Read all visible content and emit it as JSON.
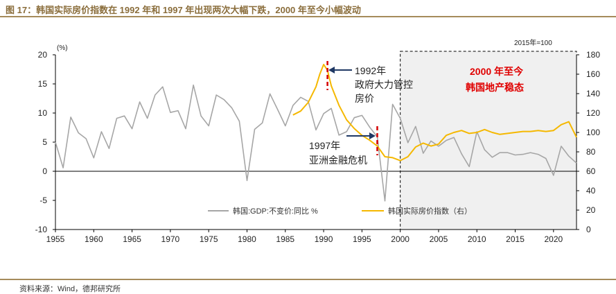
{
  "header": {
    "title": "图 17：韩国实际房价指数在 1992 年和 1997 年出现两次大幅下跌，2000 年至今小幅波动"
  },
  "footer": {
    "source": "资料来源：Wind，德邦研究所"
  },
  "chart_data": {
    "type": "line",
    "x_range": [
      1955,
      2023
    ],
    "xticks": [
      1955,
      1960,
      1965,
      1970,
      1975,
      1980,
      1985,
      1990,
      1995,
      2000,
      2005,
      2010,
      2015,
      2020
    ],
    "left_axis": {
      "unit_label": "(%)",
      "ylim": [
        -10,
        20
      ],
      "ticks": [
        -10,
        -5,
        0,
        5,
        10,
        15,
        20
      ]
    },
    "right_axis": {
      "unit_label": "2015年=100",
      "ylim": [
        0,
        180
      ],
      "ticks": [
        0,
        20,
        40,
        60,
        80,
        100,
        120,
        140,
        160,
        180
      ]
    },
    "series": [
      {
        "name": "韩国:GDP:不变价:同比 %",
        "axis": "left",
        "color": "#a6a6a6",
        "x": [
          1955,
          1956,
          1957,
          1958,
          1959,
          1960,
          1961,
          1962,
          1963,
          1964,
          1965,
          1966,
          1967,
          1968,
          1969,
          1970,
          1971,
          1972,
          1973,
          1974,
          1975,
          1976,
          1977,
          1978,
          1979,
          1980,
          1981,
          1982,
          1983,
          1984,
          1985,
          1986,
          1987,
          1988,
          1989,
          1990,
          1991,
          1992,
          1993,
          1994,
          1995,
          1996,
          1997,
          1998,
          1999,
          2000,
          2001,
          2002,
          2003,
          2004,
          2005,
          2006,
          2007,
          2008,
          2009,
          2010,
          2011,
          2012,
          2013,
          2014,
          2015,
          2016,
          2017,
          2018,
          2019,
          2020,
          2021,
          2022,
          2023
        ],
        "values": [
          5.0,
          0.6,
          9.3,
          6.6,
          5.6,
          2.3,
          6.8,
          3.9,
          9.1,
          9.5,
          7.3,
          11.9,
          9.1,
          13.1,
          14.5,
          10.1,
          10.4,
          7.3,
          14.8,
          9.5,
          7.8,
          13.1,
          12.3,
          10.9,
          8.6,
          -1.6,
          7.2,
          8.3,
          13.3,
          10.6,
          7.8,
          11.3,
          12.7,
          12.0,
          7.1,
          9.9,
          10.8,
          6.2,
          6.8,
          9.2,
          9.6,
          7.6,
          5.9,
          -5.1,
          11.5,
          9.1,
          4.9,
          7.7,
          3.1,
          5.2,
          4.3,
          5.3,
          5.8,
          3.0,
          0.8,
          6.8,
          3.7,
          2.4,
          3.2,
          3.2,
          2.8,
          2.9,
          3.2,
          2.9,
          2.2,
          -0.7,
          4.3,
          2.6,
          1.4
        ]
      },
      {
        "name": "韩国实际房价指数（右）",
        "axis": "right",
        "color": "#f5b800",
        "x": [
          1986,
          1987,
          1988,
          1989,
          1989.5,
          1990,
          1990.5,
          1991,
          1992,
          1993,
          1994,
          1995,
          1996,
          1997,
          1998,
          1999,
          2000,
          2001,
          2002,
          2003,
          2004,
          2005,
          2006,
          2007,
          2008,
          2009,
          2010,
          2011,
          2012,
          2013,
          2014,
          2015,
          2016,
          2017,
          2018,
          2019,
          2020,
          2021,
          2022,
          2023
        ],
        "values": [
          118,
          122,
          131,
          147,
          160,
          170,
          164,
          148,
          128,
          113,
          104,
          97,
          92,
          86,
          75,
          74,
          71,
          75,
          85,
          89,
          86,
          88,
          97,
          100,
          102,
          99,
          100,
          103,
          100,
          98,
          99,
          100,
          101,
          101,
          102,
          101,
          102,
          108,
          111,
          95
        ]
      }
    ],
    "annotations": {
      "event1_line1": "1992年",
      "event1_line2": "政府大力管控",
      "event1_line3": "房价",
      "event2_line1": "1997年",
      "event2_line2": "亚洲金融危机",
      "period_line1": "2000 年至今",
      "period_line2": "韩国地产稳态",
      "event1_year": 1990.5,
      "event2_year": 1997
    }
  }
}
